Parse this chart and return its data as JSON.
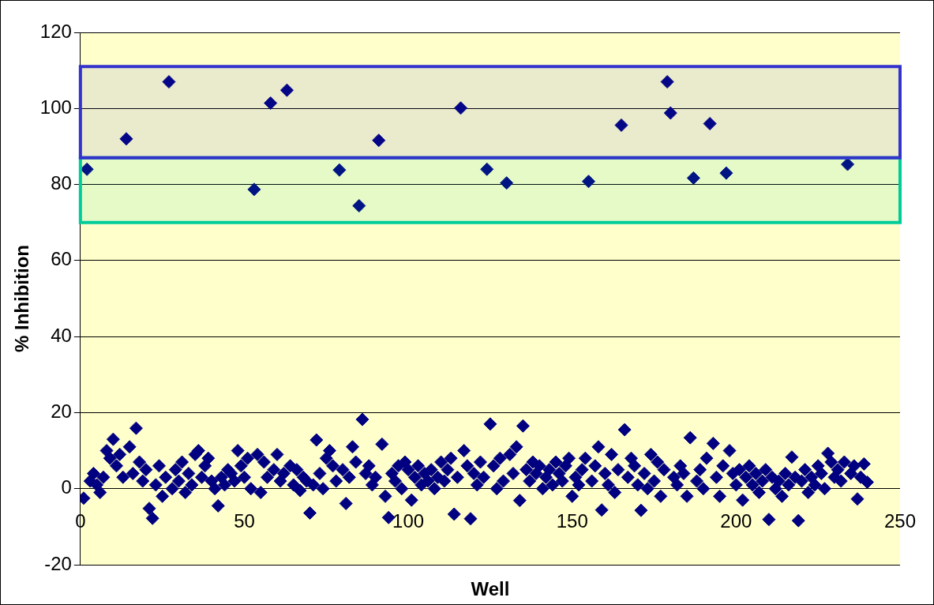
{
  "chart_data": {
    "type": "scatter",
    "xlabel": "Well",
    "ylabel": "% Inhibition",
    "x": [
      1,
      2,
      3,
      4,
      5,
      6,
      7,
      8,
      9,
      10,
      11,
      12,
      13,
      14,
      15,
      16,
      17,
      18,
      19,
      20,
      21,
      22,
      23,
      24,
      25,
      26,
      27,
      28,
      29,
      30,
      31,
      32,
      33,
      34,
      35,
      36,
      37,
      38,
      39,
      40,
      41,
      42,
      43,
      44,
      45,
      46,
      47,
      48,
      49,
      50,
      51,
      52,
      53,
      54,
      55,
      56,
      57,
      58,
      59,
      60,
      61,
      62,
      63,
      64,
      65,
      66,
      67,
      68,
      69,
      70,
      71,
      72,
      73,
      74,
      75,
      76,
      77,
      78,
      79,
      80,
      81,
      82,
      83,
      84,
      85,
      86,
      87,
      88,
      89,
      90,
      91,
      92,
      93,
      94,
      95,
      96,
      97,
      98,
      99,
      100,
      101,
      102,
      103,
      104,
      105,
      106,
      107,
      108,
      109,
      110,
      111,
      112,
      113,
      114,
      115,
      116,
      117,
      118,
      119,
      120,
      121,
      122,
      123,
      124,
      125,
      126,
      127,
      128,
      129,
      130,
      131,
      132,
      133,
      134,
      135,
      136,
      137,
      138,
      139,
      140,
      141,
      142,
      143,
      144,
      145,
      146,
      147,
      148,
      149,
      150,
      151,
      152,
      153,
      154,
      155,
      156,
      157,
      158,
      159,
      160,
      161,
      162,
      163,
      164,
      165,
      166,
      167,
      168,
      169,
      170,
      171,
      172,
      173,
      174,
      175,
      176,
      177,
      178,
      179,
      180,
      181,
      182,
      183,
      184,
      185,
      186,
      187,
      188,
      189,
      190,
      191,
      192,
      193,
      194,
      195,
      196,
      197,
      198,
      199,
      200,
      201,
      202,
      203,
      204,
      205,
      206,
      207,
      208,
      209,
      210,
      211,
      212,
      213,
      214,
      215,
      216,
      217,
      218,
      219,
      220,
      221,
      222,
      223,
      224,
      225,
      226,
      227,
      228,
      229,
      230,
      231,
      232,
      233,
      234,
      235,
      236,
      237,
      238,
      239,
      240
    ],
    "series": [
      {
        "color": "#000080",
        "values": [
          -2.5,
          84,
          2,
          4,
          1,
          -1,
          3,
          10,
          8,
          13,
          6,
          9,
          3,
          92,
          11,
          4,
          15.9,
          7,
          2,
          5,
          -5.2,
          -7.8,
          1,
          6,
          -2,
          3,
          107,
          0,
          5,
          2,
          7,
          -1,
          4,
          1,
          9,
          10,
          3,
          6,
          8,
          2,
          0,
          -4.5,
          3,
          1,
          5,
          4,
          2,
          10,
          6,
          3,
          8,
          0,
          78.7,
          9,
          -1,
          7,
          3,
          101.4,
          5,
          9,
          2,
          4,
          104.8,
          6,
          1,
          5,
          -0.5,
          3,
          2,
          -6.4,
          1,
          12.8,
          4,
          0,
          8,
          10,
          6,
          2,
          83.8,
          5,
          -3.9,
          3,
          11,
          7,
          74.4,
          18.2,
          4,
          6,
          1,
          3,
          91.6,
          11.7,
          -2,
          -7.6,
          4,
          2,
          6,
          0,
          7,
          5,
          -3,
          3,
          6,
          1,
          4,
          2,
          5,
          0,
          3,
          7,
          2,
          5,
          8,
          -6.7,
          3,
          100.1,
          10,
          6,
          -7.9,
          4,
          1,
          7,
          3,
          84,
          17,
          6,
          0,
          8,
          2,
          80.4,
          9,
          4,
          11,
          -3.1,
          16.5,
          5,
          2,
          7,
          4,
          6,
          0,
          3,
          5,
          1,
          7,
          4,
          2,
          6,
          8,
          -2,
          3,
          1,
          5,
          8,
          80.8,
          2,
          6,
          11,
          -5.6,
          4,
          1,
          9,
          -1,
          5,
          95.6,
          15.5,
          3,
          8,
          6,
          1,
          -5.7,
          4,
          0,
          9,
          2,
          7,
          -2,
          5,
          107,
          98.8,
          3,
          1,
          6,
          4,
          -2,
          13.4,
          81.7,
          2,
          5,
          0,
          8,
          96,
          11.9,
          3,
          -2,
          6,
          83,
          10,
          4,
          1,
          5,
          -3,
          3,
          6,
          1,
          4,
          -1,
          2,
          5,
          -8.1,
          3,
          0,
          2,
          -2,
          4,
          1,
          8.3,
          3,
          -8.4,
          2,
          5,
          -1,
          3,
          1,
          6,
          4,
          0,
          9.3,
          7,
          3,
          5,
          2,
          7,
          85.3,
          4,
          6,
          -2.7,
          3,
          6.5,
          1.7
        ]
      }
    ],
    "xlim": [
      0,
      250
    ],
    "xticks": [
      0,
      50,
      100,
      150,
      200,
      250
    ],
    "ylim": [
      -20,
      120
    ],
    "yticks": [
      -20,
      0,
      20,
      40,
      60,
      80,
      100,
      120
    ],
    "bands": [
      {
        "axis": "y",
        "from": 70,
        "to": 87,
        "color": "#00cc99"
      },
      {
        "axis": "y",
        "from": 87,
        "to": 111,
        "color": "#3333cc"
      }
    ],
    "grid": "y",
    "marker": "diamond",
    "legend": false
  }
}
